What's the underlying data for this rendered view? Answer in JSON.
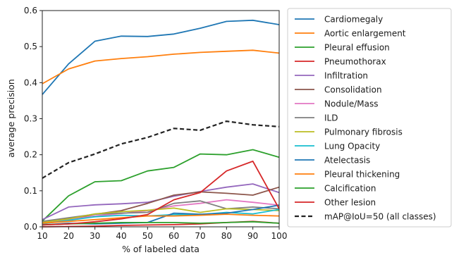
{
  "chart_data": {
    "type": "line",
    "title": "",
    "xlabel": "% of labeled data",
    "ylabel": "average precision",
    "x": [
      10,
      20,
      30,
      40,
      50,
      60,
      70,
      80,
      90,
      100
    ],
    "xticks": [
      "10",
      "20",
      "30",
      "40",
      "50",
      "60",
      "70",
      "80",
      "90",
      "100"
    ],
    "yticks": [
      "0.0",
      "0.1",
      "0.2",
      "0.3",
      "0.4",
      "0.5",
      "0.6"
    ],
    "xlim": [
      10,
      100
    ],
    "ylim": [
      0,
      0.6
    ],
    "grid": false,
    "legend_position": "outside-right",
    "series": [
      {
        "name": "Cardiomegaly",
        "color": "#1f77b4",
        "dashed": false,
        "values": [
          0.367,
          0.452,
          0.515,
          0.529,
          0.528,
          0.535,
          0.551,
          0.57,
          0.573,
          0.561
        ]
      },
      {
        "name": "Aortic enlargement",
        "color": "#ff7f0e",
        "dashed": false,
        "values": [
          0.397,
          0.438,
          0.46,
          0.467,
          0.472,
          0.479,
          0.484,
          0.487,
          0.49,
          0.482
        ]
      },
      {
        "name": "Pleural effusion",
        "color": "#2ca02c",
        "dashed": false,
        "values": [
          0.016,
          0.086,
          0.125,
          0.128,
          0.155,
          0.165,
          0.202,
          0.2,
          0.214,
          0.193
        ]
      },
      {
        "name": "Pneumothorax",
        "color": "#d62728",
        "dashed": false,
        "values": [
          0.0,
          0.001,
          0.002,
          0.004,
          0.005,
          0.006,
          0.008,
          0.012,
          0.015,
          0.01
        ]
      },
      {
        "name": "Infiltration",
        "color": "#9467bd",
        "dashed": false,
        "values": [
          0.02,
          0.055,
          0.061,
          0.064,
          0.068,
          0.085,
          0.098,
          0.11,
          0.119,
          0.095
        ]
      },
      {
        "name": "Consolidation",
        "color": "#8c564b",
        "dashed": false,
        "values": [
          0.008,
          0.02,
          0.035,
          0.045,
          0.065,
          0.088,
          0.097,
          0.093,
          0.088,
          0.11
        ]
      },
      {
        "name": "Nodule/Mass",
        "color": "#e377c2",
        "dashed": false,
        "values": [
          0.01,
          0.02,
          0.03,
          0.037,
          0.045,
          0.058,
          0.065,
          0.075,
          0.068,
          0.06
        ]
      },
      {
        "name": "ILD",
        "color": "#7f7f7f",
        "dashed": false,
        "values": [
          0.015,
          0.025,
          0.035,
          0.038,
          0.04,
          0.065,
          0.072,
          0.05,
          0.055,
          0.05
        ]
      },
      {
        "name": "Pulmonary fibrosis",
        "color": "#bcbd22",
        "dashed": false,
        "values": [
          0.012,
          0.022,
          0.036,
          0.042,
          0.046,
          0.052,
          0.04,
          0.05,
          0.048,
          0.045
        ]
      },
      {
        "name": "Lung Opacity",
        "color": "#17becf",
        "dashed": false,
        "values": [
          0.008,
          0.018,
          0.028,
          0.032,
          0.03,
          0.034,
          0.034,
          0.04,
          0.036,
          0.048
        ]
      },
      {
        "name": "Atelectasis",
        "color": "#1f77b4",
        "dashed": false,
        "values": [
          0.005,
          0.01,
          0.008,
          0.01,
          0.012,
          0.038,
          0.035,
          0.038,
          0.048,
          0.06
        ]
      },
      {
        "name": "Pleural thickening",
        "color": "#ff7f0e",
        "dashed": false,
        "values": [
          0.01,
          0.015,
          0.02,
          0.025,
          0.03,
          0.03,
          0.032,
          0.035,
          0.032,
          0.03
        ]
      },
      {
        "name": "Calcification",
        "color": "#2ca02c",
        "dashed": false,
        "values": [
          0.005,
          0.008,
          0.01,
          0.012,
          0.012,
          0.012,
          0.01,
          0.012,
          0.014,
          0.01
        ]
      },
      {
        "name": "Other lesion",
        "color": "#d62728",
        "dashed": false,
        "values": [
          0.005,
          0.008,
          0.014,
          0.022,
          0.034,
          0.075,
          0.095,
          0.155,
          0.182,
          0.05
        ]
      },
      {
        "name": "mAP@IoU=50 (all classes)",
        "color": "#222222",
        "dashed": true,
        "values": [
          0.135,
          0.178,
          0.202,
          0.23,
          0.248,
          0.273,
          0.268,
          0.293,
          0.283,
          0.278
        ]
      }
    ]
  }
}
